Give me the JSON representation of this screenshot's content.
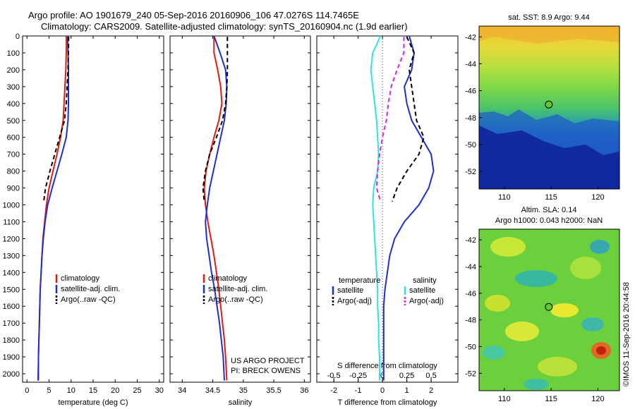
{
  "header": {
    "line1": "Argo profile: AO 1901679_240 05-Sep-2016 20160906_106 47.0276S 114.7465E",
    "line2": "Climatology: CARS2009. Satellite-adjusted climatology: synTS_20160904.nc (1.9d earlier)"
  },
  "colors": {
    "climatology": "#e8180c",
    "satellite": "#1c2fd6",
    "argo": "#000000",
    "satellite_salinity": "#28e6e6",
    "argo_salinity": "#e020e0",
    "marker": "#5ccc2c"
  },
  "right_panels": {
    "sst_title": "sat. SST: 8.9 Argo: 9.44",
    "sla_title1": "Altim. SLA: 0.14",
    "sla_title2": "Argo h1000: 0.043 h2000: NaN",
    "copyright": "©IMOS 11-Sep-2016 20:44:58"
  },
  "chart_data": [
    {
      "type": "line",
      "xlabel": "temperature (deg C)",
      "xlim": [
        -1,
        31
      ],
      "xticks": [
        "0",
        "5",
        "10",
        "15",
        "20",
        "25",
        "30"
      ],
      "ylim": [
        0,
        2050
      ],
      "yticks": [
        "0",
        "100",
        "200",
        "300",
        "400",
        "500",
        "600",
        "700",
        "800",
        "900",
        "1000",
        "1100",
        "1200",
        "1300",
        "1400",
        "1500",
        "1600",
        "1700",
        "1800",
        "1900",
        "2000"
      ],
      "legend": [
        "climatology",
        "satellite-adj. clim.",
        "Argo(..raw -QC)"
      ],
      "series": [
        {
          "name": "climatology",
          "color_key": "climatology",
          "dash": "",
          "x": [
            8.9,
            8.9,
            8.8,
            8.6,
            8.4,
            8.2,
            7.6,
            6.8,
            5.9,
            5.0,
            4.4,
            4.0,
            3.6,
            3.4,
            3.2,
            3.0,
            2.9,
            2.8,
            2.7,
            2.6,
            2.6
          ],
          "y": [
            0,
            100,
            200,
            300,
            400,
            500,
            600,
            700,
            800,
            900,
            1000,
            1100,
            1200,
            1300,
            1400,
            1500,
            1600,
            1700,
            1800,
            1900,
            2040
          ]
        },
        {
          "name": "satellite-adj. clim.",
          "color_key": "satellite",
          "dash": "",
          "x": [
            9.2,
            9.3,
            9.4,
            9.4,
            9.4,
            9.3,
            8.9,
            7.9,
            6.8,
            5.7,
            4.7,
            4.1,
            3.7,
            3.4,
            3.2,
            3.0,
            2.9,
            2.8,
            2.7,
            2.6,
            2.5
          ],
          "y": [
            0,
            100,
            200,
            300,
            400,
            500,
            600,
            700,
            800,
            900,
            1000,
            1100,
            1200,
            1300,
            1400,
            1500,
            1600,
            1700,
            1800,
            1900,
            2040
          ]
        },
        {
          "name": "Argo(..raw -QC)",
          "color_key": "argo",
          "dash": "6,4",
          "x": [
            9.44,
            9.4,
            9.3,
            9.1,
            8.9,
            8.5,
            7.4,
            6.3,
            5.2,
            4.2,
            3.8
          ],
          "y": [
            5,
            100,
            200,
            300,
            400,
            500,
            600,
            700,
            800,
            900,
            980
          ]
        }
      ]
    },
    {
      "type": "line",
      "xlabel": "salinity",
      "xlim": [
        33.8,
        36.1
      ],
      "xticks": [
        "34",
        "34.5",
        "35",
        "35.5",
        "36"
      ],
      "ylim": [
        0,
        2050
      ],
      "legend": [
        "climatology",
        "satellite-adj. clim.",
        "Argo(..raw -QC)"
      ],
      "annotations": [
        "US ARGO PROJECT",
        "PI: BRECK OWENS"
      ],
      "series": [
        {
          "name": "climatology",
          "color_key": "climatology",
          "dash": "",
          "x": [
            34.52,
            34.52,
            34.58,
            34.63,
            34.65,
            34.6,
            34.52,
            34.45,
            34.39,
            34.36,
            34.38,
            34.42,
            34.47,
            34.52,
            34.56,
            34.6,
            34.63,
            34.66,
            34.69,
            34.71,
            34.73
          ],
          "y": [
            0,
            100,
            200,
            300,
            400,
            500,
            600,
            700,
            800,
            900,
            1000,
            1100,
            1200,
            1300,
            1400,
            1500,
            1600,
            1700,
            1800,
            1900,
            2040
          ]
        },
        {
          "name": "satellite-adj. clim.",
          "color_key": "satellite",
          "dash": "",
          "x": [
            34.52,
            34.62,
            34.71,
            34.73,
            34.72,
            34.69,
            34.63,
            34.57,
            34.51,
            34.45,
            34.41,
            34.38,
            34.4,
            34.44,
            34.48,
            34.53,
            34.57,
            34.61,
            34.64,
            34.67,
            34.69
          ],
          "y": [
            0,
            100,
            200,
            300,
            400,
            500,
            600,
            700,
            800,
            900,
            1000,
            1100,
            1200,
            1300,
            1400,
            1500,
            1600,
            1700,
            1800,
            1900,
            2040
          ]
        },
        {
          "name": "Argo(..raw -QC)",
          "color_key": "argo",
          "dash": "6,4",
          "x": [
            34.74,
            34.74,
            34.74,
            34.73,
            34.71,
            34.66,
            34.56,
            34.45,
            34.38,
            34.34,
            34.36
          ],
          "y": [
            5,
            100,
            200,
            300,
            400,
            500,
            600,
            700,
            800,
            900,
            980
          ]
        }
      ]
    },
    {
      "type": "line",
      "xlabel": "T difference from climatology",
      "xlim": [
        -2.7,
        3.1
      ],
      "xticks": [
        "-2",
        "-1",
        "0",
        "1",
        "2"
      ],
      "x2label": "S difference from climatology",
      "x2lim": [
        -0.675,
        0.775
      ],
      "x2ticks": [
        "-0.5",
        "-0.25",
        "0",
        "0.25",
        "0.5"
      ],
      "ylim": [
        0,
        2050
      ],
      "legend_temperature_title": "temperature",
      "legend_salinity_title": "salinity",
      "legend": [
        "satellite",
        "Argo(-adj)",
        "satellite",
        "Argo(-adj)"
      ],
      "series": [
        {
          "name": "T satellite",
          "color_key": "satellite",
          "dash": "",
          "axis": "T",
          "x": [
            1.1,
            1.3,
            1.2,
            0.9,
            1.0,
            1.2,
            1.6,
            2.0,
            2.1,
            1.9,
            1.5,
            0.9,
            0.5,
            0.3,
            0.2,
            0.1,
            0.05,
            0.05,
            0.05,
            0.05,
            0.05
          ],
          "y": [
            0,
            100,
            200,
            300,
            400,
            500,
            600,
            700,
            800,
            900,
            1000,
            1100,
            1200,
            1300,
            1400,
            1500,
            1600,
            1700,
            1800,
            1900,
            2040
          ]
        },
        {
          "name": "T Argo(-adj)",
          "color_key": "argo",
          "dash": "6,4",
          "axis": "T",
          "x": [
            1.0,
            1.3,
            1.1,
            1.2,
            1.3,
            1.4,
            1.7,
            1.5,
            1.0,
            0.6,
            0.4
          ],
          "y": [
            5,
            100,
            200,
            300,
            400,
            500,
            600,
            700,
            800,
            900,
            980
          ]
        },
        {
          "name": "S satellite",
          "color_key": "satellite_salinity",
          "dash": "",
          "axis": "S",
          "x": [
            -0.02,
            -0.1,
            -0.12,
            -0.1,
            -0.08,
            -0.06,
            -0.05,
            -0.04,
            -0.05,
            -0.09,
            -0.1,
            -0.09,
            -0.08,
            -0.07,
            -0.06,
            -0.05,
            -0.05,
            -0.04,
            -0.04,
            -0.03,
            -0.03
          ],
          "y": [
            0,
            100,
            200,
            300,
            400,
            500,
            600,
            700,
            800,
            900,
            1000,
            1100,
            1200,
            1300,
            1400,
            1500,
            1600,
            1700,
            1800,
            1900,
            2040
          ]
        },
        {
          "name": "S Argo(-adj)",
          "color_key": "argo_salinity",
          "dash": "6,4",
          "axis": "S",
          "x": [
            0.22,
            0.22,
            0.15,
            0.09,
            0.06,
            0.04,
            0.0,
            -0.03,
            -0.05,
            -0.06,
            -0.02
          ],
          "y": [
            5,
            100,
            200,
            300,
            400,
            500,
            600,
            700,
            800,
            900,
            980
          ]
        }
      ]
    },
    {
      "type": "heatmap",
      "title": "sat. SST: 8.9 Argo: 9.44",
      "xticks": [
        "110",
        "115",
        "120"
      ],
      "yticks": [
        "-42",
        "-44",
        "-46",
        "-48",
        "-50",
        "-52"
      ],
      "xlim": [
        107.3,
        122.3
      ],
      "ylim": [
        -53.3,
        -41.2
      ],
      "marker": {
        "lon": 114.7465,
        "lat": -47.0276
      }
    },
    {
      "type": "heatmap",
      "title": "Altim. SLA: 0.14",
      "xticks": [
        "110",
        "115",
        "120"
      ],
      "yticks": [
        "-42",
        "-44",
        "-46",
        "-48",
        "-50",
        "-52"
      ],
      "xlim": [
        107.3,
        122.3
      ],
      "ylim": [
        -53.3,
        -41.2
      ],
      "marker": {
        "lon": 114.7465,
        "lat": -47.0276
      }
    }
  ]
}
